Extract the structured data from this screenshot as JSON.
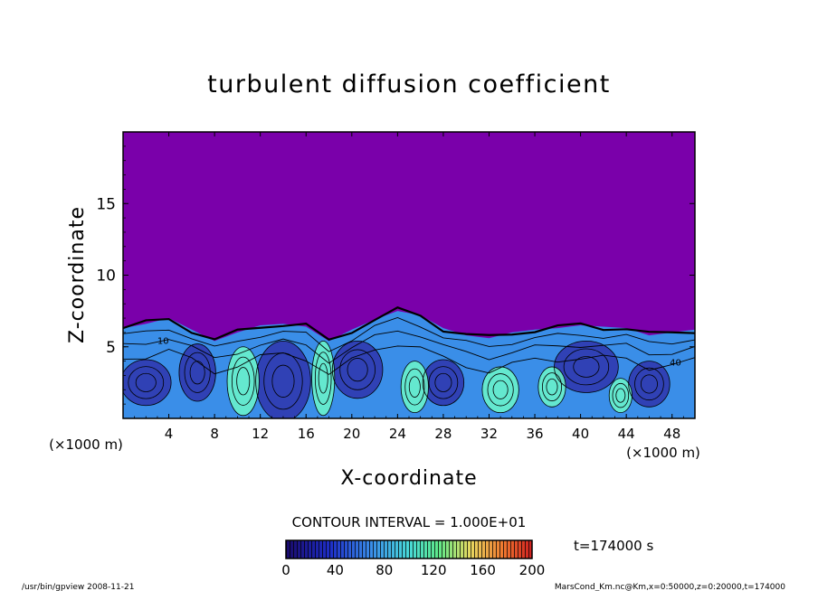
{
  "chart_data": {
    "type": "heatmap",
    "title": "turbulent diffusion coefficient",
    "xlabel": "X-coordinate",
    "ylabel": "Z-coordinate",
    "x_unit": "(×1000 m)",
    "z_unit": "(×1000 m)",
    "xlim": [
      0,
      50
    ],
    "ylim": [
      0,
      20
    ],
    "x_ticks": [
      4,
      8,
      12,
      16,
      20,
      24,
      28,
      32,
      36,
      40,
      44,
      48
    ],
    "y_ticks": [
      5,
      10,
      15
    ],
    "contour_interval": "CONTOUR INTERVAL = 1.000E+01",
    "colorbar": {
      "min": 0,
      "max": 200,
      "ticks": [
        0,
        40,
        80,
        120,
        160,
        200
      ]
    },
    "boundary_layer_top": [
      [
        0,
        6.3
      ],
      [
        2,
        6.6
      ],
      [
        4,
        7.0
      ],
      [
        6,
        6.2
      ],
      [
        8,
        5.4
      ],
      [
        10,
        6.0
      ],
      [
        12,
        6.5
      ],
      [
        14,
        6.6
      ],
      [
        16,
        6.4
      ],
      [
        18,
        5.4
      ],
      [
        20,
        6.2
      ],
      [
        22,
        6.9
      ],
      [
        24,
        7.5
      ],
      [
        26,
        7.2
      ],
      [
        28,
        6.3
      ],
      [
        30,
        5.8
      ],
      [
        32,
        5.6
      ],
      [
        34,
        6.0
      ],
      [
        36,
        6.2
      ],
      [
        38,
        6.3
      ],
      [
        40,
        6.5
      ],
      [
        42,
        6.4
      ],
      [
        44,
        6.3
      ],
      [
        46,
        5.8
      ],
      [
        48,
        6.0
      ],
      [
        50,
        6.2
      ]
    ],
    "features": [
      {
        "label": "40",
        "x": 48.3,
        "z": 3.7
      },
      {
        "label": "10",
        "x": 3.5,
        "z": 5.2
      }
    ],
    "colors": {
      "background": "#7a00aa",
      "low": "#2e2ea8",
      "mid": "#3a8ee8",
      "high": "#6fffc8"
    }
  },
  "time_label": "t=174000 s",
  "footer": {
    "left": "/usr/bin/gpview   2008-11-21",
    "right": "MarsCond_Km.nc@Km,x=0:50000,z=0:20000,t=174000"
  }
}
